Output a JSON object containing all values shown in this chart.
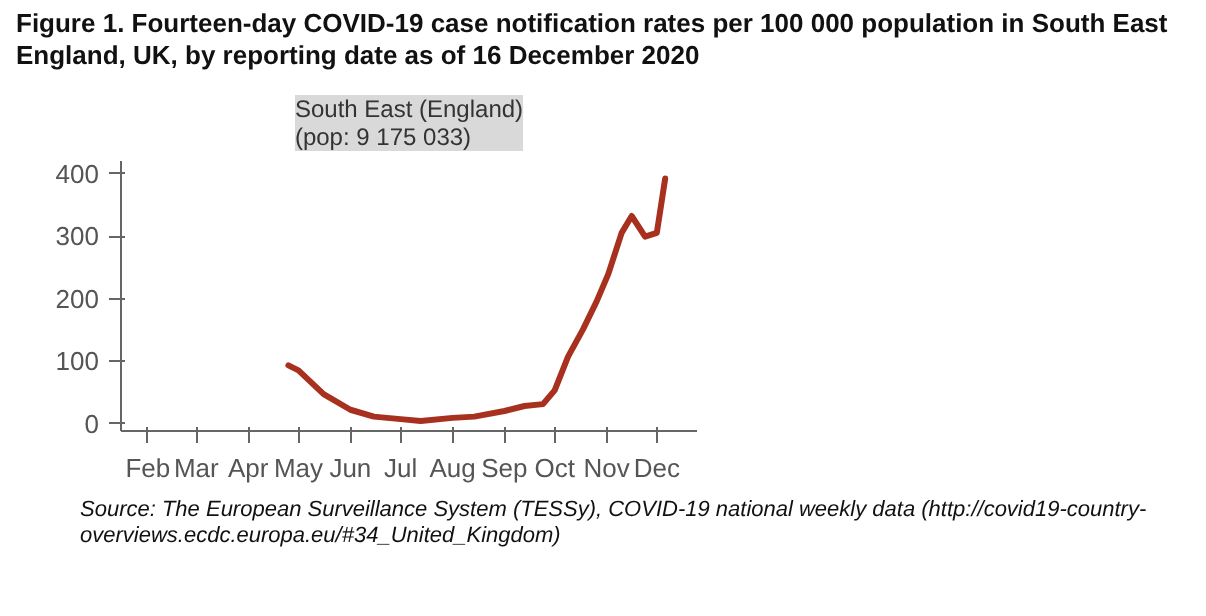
{
  "chart_data": {
    "type": "line",
    "title": "Figure 1. Fourteen-day COVID-19 case notification rates per 100 000 population in South East England, UK, by reporting date as of 16 December 2020",
    "subtitle": "South East (England)\n(pop: 9 175 033)",
    "x": [
      "2020-04-25",
      "2020-05-01",
      "2020-05-16",
      "2020-06-01",
      "2020-06-15",
      "2020-07-01",
      "2020-07-13",
      "2020-08-01",
      "2020-08-14",
      "2020-09-01",
      "2020-09-13",
      "2020-09-24",
      "2020-10-01",
      "2020-10-09",
      "2020-10-18",
      "2020-10-26",
      "2020-11-02",
      "2020-11-10",
      "2020-11-16",
      "2020-11-24",
      "2020-12-01",
      "2020-12-06"
    ],
    "series": [
      {
        "color": "#a8301f",
        "values": [
          93,
          85,
          47,
          22,
          11,
          7,
          4,
          9,
          11,
          20,
          28,
          31,
          53,
          107,
          151,
          195,
          239,
          305,
          332,
          299,
          305,
          392
        ]
      }
    ],
    "xlim": [
      "2020-01-16",
      "2020-12-25"
    ],
    "xticks": [
      {
        "value": "2020-02",
        "label": "Feb"
      },
      {
        "value": "2020-03",
        "label": "Mar"
      },
      {
        "value": "2020-04",
        "label": "Apr"
      },
      {
        "value": "2020-05",
        "label": "May"
      },
      {
        "value": "2020-06",
        "label": "Jun"
      },
      {
        "value": "2020-07",
        "label": "Jul"
      },
      {
        "value": "2020-08",
        "label": "Aug"
      },
      {
        "value": "2020-09",
        "label": "Sep"
      },
      {
        "value": "2020-10",
        "label": "Oct"
      },
      {
        "value": "2020-11",
        "label": "Nov"
      },
      {
        "value": "2020-12",
        "label": "Dec"
      }
    ],
    "ylim": [
      -12,
      420
    ],
    "yticks": [
      0,
      100,
      200,
      300,
      400
    ],
    "grid": false,
    "marker": "none",
    "line_style": "solid",
    "annotations": [
      "Source: The European Surveillance System (TESSy), COVID-19 national weekly data (http://covid19-country-overviews.ecdc.europa.eu/#34_United_Kingdom)"
    ]
  }
}
